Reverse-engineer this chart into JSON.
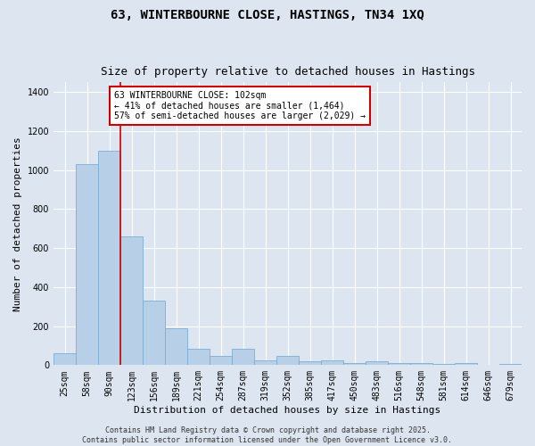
{
  "title": "63, WINTERBOURNE CLOSE, HASTINGS, TN34 1XQ",
  "subtitle": "Size of property relative to detached houses in Hastings",
  "xlabel": "Distribution of detached houses by size in Hastings",
  "ylabel": "Number of detached properties",
  "categories": [
    "25sqm",
    "58sqm",
    "90sqm",
    "123sqm",
    "156sqm",
    "189sqm",
    "221sqm",
    "254sqm",
    "287sqm",
    "319sqm",
    "352sqm",
    "385sqm",
    "417sqm",
    "450sqm",
    "483sqm",
    "516sqm",
    "548sqm",
    "581sqm",
    "614sqm",
    "646sqm",
    "679sqm"
  ],
  "values": [
    60,
    1030,
    1100,
    660,
    330,
    190,
    85,
    45,
    85,
    25,
    45,
    20,
    25,
    12,
    20,
    10,
    12,
    5,
    10,
    3,
    5
  ],
  "bar_color": "#b8cfe8",
  "bar_edge_color": "#7aaed4",
  "background_color": "#dde6f0",
  "grid_color": "#ffffff",
  "vline_x": 2.5,
  "vline_color": "#cc0000",
  "annotation_text": "63 WINTERBOURNE CLOSE: 102sqm\n← 41% of detached houses are smaller (1,464)\n57% of semi-detached houses are larger (2,029) →",
  "annotation_box_facecolor": "#ffffff",
  "annotation_box_edgecolor": "#cc0000",
  "footer1": "Contains HM Land Registry data © Crown copyright and database right 2025.",
  "footer2": "Contains public sector information licensed under the Open Government Licence v3.0.",
  "ylim": [
    0,
    1450
  ],
  "yticks": [
    0,
    200,
    400,
    600,
    800,
    1000,
    1200,
    1400
  ],
  "title_fontsize": 10,
  "subtitle_fontsize": 9,
  "ylabel_fontsize": 8,
  "xlabel_fontsize": 8,
  "tick_fontsize": 7,
  "annot_fontsize": 7,
  "footer_fontsize": 6
}
